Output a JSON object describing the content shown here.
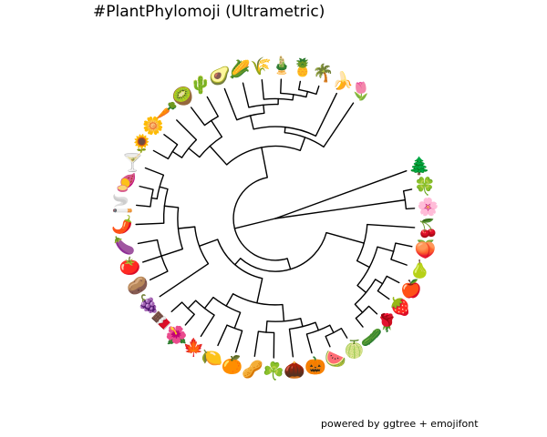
{
  "title": "#PlantPhylomoji (Ultrametric)",
  "caption": "powered by ggtree + emojifont",
  "tips": [
    {
      "name": "evergreen tree",
      "emoji": "🌲"
    },
    {
      "name": "four leaf clover",
      "emoji": "🍀"
    },
    {
      "name": "cherry blossom",
      "emoji": "🌸"
    },
    {
      "name": "cherries",
      "emoji": "🍒"
    },
    {
      "name": "peach",
      "emoji": "🍑"
    },
    {
      "name": "pear",
      "emoji": "🍐"
    },
    {
      "name": "red apple",
      "emoji": "🍎"
    },
    {
      "name": "strawberry",
      "emoji": "🍓"
    },
    {
      "name": "rose",
      "emoji": "🌹"
    },
    {
      "name": "cucumber",
      "emoji": "🥒"
    },
    {
      "name": "melon",
      "emoji": "🍈"
    },
    {
      "name": "watermelon",
      "emoji": "🍉"
    },
    {
      "name": "jack-o-lantern",
      "emoji": "🎃"
    },
    {
      "name": "chestnut",
      "emoji": "🌰"
    },
    {
      "name": "shamrock",
      "emoji": "☘️"
    },
    {
      "name": "peanuts",
      "emoji": "🥜"
    },
    {
      "name": "tangerine",
      "emoji": "🍊"
    },
    {
      "name": "lemon",
      "emoji": "🍋"
    },
    {
      "name": "maple leaf",
      "emoji": "🍁"
    },
    {
      "name": "hibiscus",
      "emoji": "🌺"
    },
    {
      "name": "chocolate bar",
      "emoji": "🍫"
    },
    {
      "name": "grapes",
      "emoji": "🍇"
    },
    {
      "name": "potato",
      "emoji": "🥔"
    },
    {
      "name": "tomato",
      "emoji": "🍅"
    },
    {
      "name": "eggplant",
      "emoji": "🍆"
    },
    {
      "name": "hot pepper",
      "emoji": "🌶️"
    },
    {
      "name": "cigarette",
      "emoji": "🚬"
    },
    {
      "name": "sweet potato",
      "emoji": "🍠"
    },
    {
      "name": "cocktail glass",
      "emoji": "🍸"
    },
    {
      "name": "sunflower",
      "emoji": "🌻"
    },
    {
      "name": "blossom",
      "emoji": "🌼"
    },
    {
      "name": "carrot",
      "emoji": "🥕"
    },
    {
      "name": "kiwi fruit",
      "emoji": "🥝"
    },
    {
      "name": "cactus",
      "emoji": "🌵"
    },
    {
      "name": "avocado",
      "emoji": "🥑"
    },
    {
      "name": "ear of corn",
      "emoji": "🌽"
    },
    {
      "name": "ear of rice",
      "emoji": "🌾"
    },
    {
      "name": "bamboo",
      "emoji": "🎍"
    },
    {
      "name": "pineapple",
      "emoji": "🍍"
    },
    {
      "name": "palm tree",
      "emoji": "🌴"
    },
    {
      "name": "banana",
      "emoji": "🍌"
    },
    {
      "name": "tulip",
      "emoji": "🌷"
    }
  ],
  "tree": {
    "h": 0,
    "c": [
      {
        "h": 0.3,
        "c": [
          {
            "h": 0.52,
            "c": [
              {
                "h": 0.62,
                "c": [
                  {
                    "h": 0.66,
                    "c": [
                      {
                        "h": 0.76,
                        "c": [
                          {
                            "h": 0.82,
                            "c": [
                              {
                                "h": 0.86,
                                "c": [
                                  {
                                    "h": 0.9,
                                    "c": [
                                      {
                                        "h": 0.94,
                                        "c": [
                                          {
                                            "t": 38
                                          },
                                          {
                                            "t": 39
                                          }
                                        ]
                                      },
                                      {
                                        "t": 37
                                      }
                                    ]
                                  },
                                  {
                                    "t": 36
                                  }
                                ]
                              },
                              {
                                "t": 35
                              }
                            ]
                          },
                          {
                            "t": 34
                          }
                        ]
                      },
                      {
                        "t": 40
                      }
                    ]
                  },
                  {
                    "t": 41
                  }
                ]
              },
              {
                "h": 0.7,
                "c": [
                  {
                    "h": 0.84,
                    "c": [
                      {
                        "t": 32
                      },
                      {
                        "t": 33
                      }
                    ]
                  },
                  {
                    "h": 0.8,
                    "c": [
                      {
                        "h": 0.88,
                        "c": [
                          {
                            "t": 29
                          },
                          {
                            "t": 30
                          }
                        ]
                      },
                      {
                        "t": 31
                      }
                    ]
                  }
                ]
              }
            ]
          },
          {
            "h": 0.38,
            "c": [
              {
                "h": 0.44,
                "c": [
                  {
                    "h": 0.58,
                    "c": [
                      {
                        "h": 0.7,
                        "c": [
                          {
                            "h": 0.8,
                            "c": [
                              {
                                "h": 0.86,
                                "c": [
                                  {
                                    "h": 0.9,
                                    "c": [
                                      {
                                        "t": 26
                                      },
                                      {
                                        "t": 27
                                      }
                                    ]
                                  },
                                  {
                                    "t": 28
                                  }
                                ]
                              },
                              {
                                "t": 25
                              }
                            ]
                          },
                          {
                            "h": 0.86,
                            "c": [
                              {
                                "t": 22
                              },
                              {
                                "t": 23
                              },
                              {
                                "t": 24
                              }
                            ]
                          }
                        ]
                      },
                      {
                        "t": 21
                      }
                    ]
                  },
                  {
                    "h": 0.62,
                    "c": [
                      {
                        "h": 0.72,
                        "c": [
                          {
                            "h": 0.82,
                            "c": [
                              {
                                "h": 0.9,
                                "c": [
                                  {
                                    "t": 19
                                  },
                                  {
                                    "t": 20
                                  }
                                ]
                              },
                              {
                                "t": 18
                              }
                            ]
                          },
                          {
                            "h": 0.84,
                            "c": [
                              {
                                "t": 16
                              },
                              {
                                "t": 17
                              }
                            ]
                          }
                        ]
                      },
                      {
                        "h": 0.74,
                        "c": [
                          {
                            "h": 0.82,
                            "c": [
                              {
                                "t": 14
                              },
                              {
                                "t": 15
                              }
                            ]
                          },
                          {
                            "h": 0.8,
                            "c": [
                              {
                                "h": 0.86,
                                "c": [
                                  {
                                    "h": 0.92,
                                    "c": [
                                      {
                                        "t": 10
                                      },
                                      {
                                        "t": 11
                                      }
                                    ]
                                  },
                                  {
                                    "t": 12
                                  }
                                ]
                              },
                              {
                                "t": 13
                              }
                            ]
                          }
                        ]
                      }
                    ]
                  }
                ]
              },
              {
                "h": 0.66,
                "c": [
                  {
                    "h": 0.76,
                    "c": [
                      {
                        "h": 0.84,
                        "c": [
                          {
                            "h": 0.9,
                            "c": [
                              {
                                "t": 6
                              },
                              {
                                "t": 7
                              }
                            ]
                          },
                          {
                            "h": 0.92,
                            "c": [
                              {
                                "t": 8
                              },
                              {
                                "t": 9
                              }
                            ]
                          }
                        ]
                      },
                      {
                        "h": 0.88,
                        "c": [
                          {
                            "t": 4
                          },
                          {
                            "t": 5
                          }
                        ]
                      }
                    ]
                  },
                  {
                    "t": 3
                  }
                ]
              }
            ]
          }
        ]
      },
      {
        "h": 0.94,
        "c": [
          {
            "t": 1
          },
          {
            "t": 2
          }
        ]
      },
      {
        "t": 0
      }
    ]
  }
}
